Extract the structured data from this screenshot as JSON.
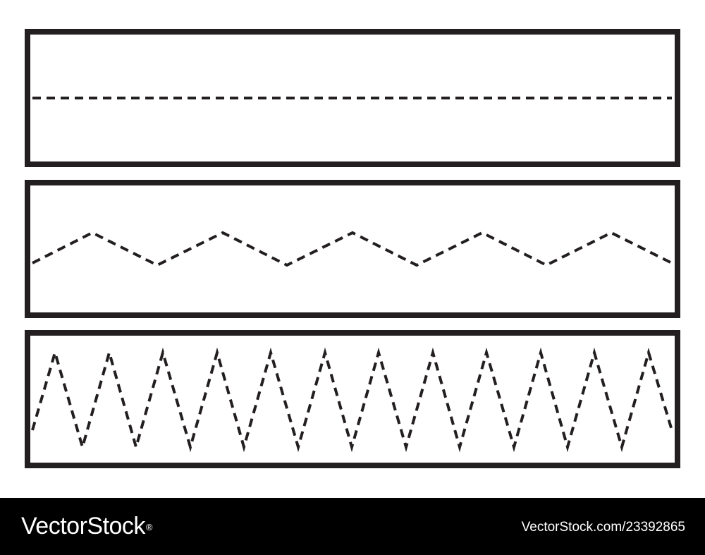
{
  "worksheet": {
    "panels": [
      {
        "name": "straight-dashed-line",
        "pattern": "straight",
        "peaks": 0
      },
      {
        "name": "gentle-zigzag-dashed-line",
        "pattern": "zigzag",
        "peaks": 5
      },
      {
        "name": "sharp-zigzag-dashed-line",
        "pattern": "zigzag",
        "peaks": 12
      }
    ],
    "line_color": "#231f20",
    "line_style": "dashed"
  },
  "footer": {
    "brand": "VectorStock",
    "registered_mark": "®",
    "image_id": "VectorStock.com/23392865",
    "background": "#000000",
    "text_color": "#ffffff"
  }
}
